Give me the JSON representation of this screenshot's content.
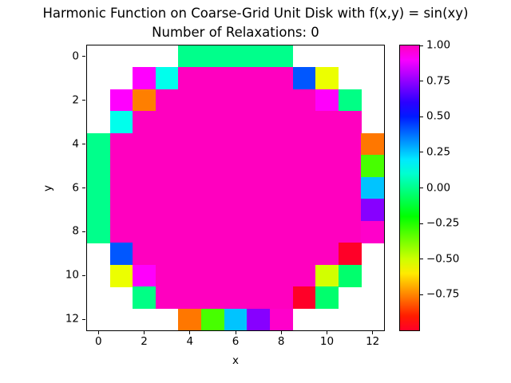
{
  "chart_data": {
    "type": "heatmap",
    "title": "Harmonic Function on Coarse-Grid Unit Disk with f(x,y) = sin(xy)",
    "subtitle": "Number of Relaxations: 0",
    "xlabel": "x",
    "ylabel": "y",
    "x_ticks": [
      0,
      2,
      4,
      6,
      8,
      10,
      12
    ],
    "y_ticks": [
      0,
      2,
      4,
      6,
      8,
      10,
      12
    ],
    "grid_size": 13,
    "colormap": "gist_rainbow",
    "vmin": -1.0,
    "vmax": 1.0,
    "interior_value": 1.0,
    "colorbar_ticks": [
      "1.00",
      "0.75",
      "0.50",
      "0.25",
      "0.00",
      "−0.25",
      "−0.50",
      "−0.75"
    ],
    "cells": [
      [
        null,
        null,
        null,
        null,
        0,
        0,
        0,
        0,
        0,
        null,
        null,
        null,
        null
      ],
      [
        null,
        null,
        0.909,
        0.141,
        1,
        1,
        1,
        1,
        1,
        0.412,
        -0.544,
        null,
        null
      ],
      [
        null,
        0.909,
        -0.757,
        1,
        1,
        1,
        1,
        1,
        1,
        1,
        0.913,
        -0.009,
        null
      ],
      [
        null,
        0.141,
        1,
        1,
        1,
        1,
        1,
        1,
        1,
        1,
        1,
        1,
        null
      ],
      [
        0,
        1,
        1,
        1,
        1,
        1,
        1,
        1,
        1,
        1,
        1,
        1,
        -0.768
      ],
      [
        0,
        1,
        1,
        1,
        1,
        1,
        1,
        1,
        1,
        1,
        1,
        1,
        -0.305
      ],
      [
        0,
        1,
        1,
        1,
        1,
        1,
        1,
        1,
        1,
        1,
        1,
        1,
        0.254
      ],
      [
        0,
        1,
        1,
        1,
        1,
        1,
        1,
        1,
        1,
        1,
        1,
        1,
        0.733
      ],
      [
        0,
        1,
        1,
        1,
        1,
        1,
        1,
        1,
        1,
        1,
        1,
        1,
        0.984
      ],
      [
        null,
        0.412,
        1,
        1,
        1,
        1,
        1,
        1,
        1,
        1,
        1,
        -0.999,
        null
      ],
      [
        null,
        -0.544,
        0.913,
        1,
        1,
        1,
        1,
        1,
        1,
        1,
        -0.506,
        -0.044,
        null
      ],
      [
        null,
        null,
        -0.009,
        1,
        1,
        1,
        1,
        1,
        1,
        -0.999,
        -0.044,
        null,
        null
      ],
      [
        null,
        null,
        null,
        null,
        -0.768,
        -0.305,
        0.254,
        0.733,
        0.984,
        null,
        null,
        null,
        null
      ]
    ]
  }
}
